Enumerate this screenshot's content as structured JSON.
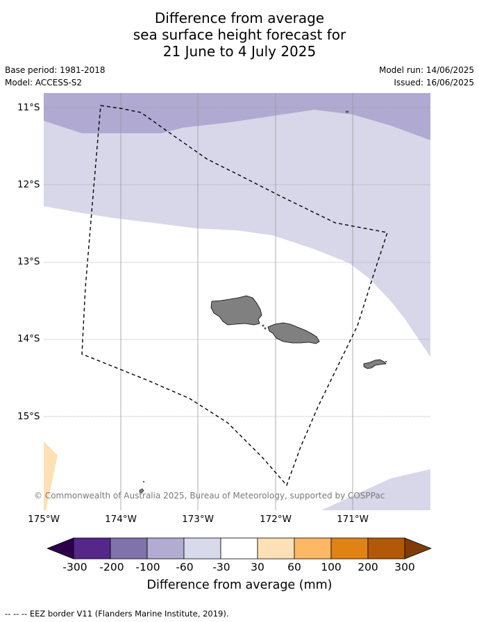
{
  "header": {
    "title_lines": [
      "Difference from average",
      "sea surface height forecast for",
      "21 June to 4 July 2025"
    ],
    "base_period": "Base period: 1981-2018",
    "model": "Model: ACCESS-S2",
    "model_run": "Model run: 14/06/2025",
    "issued": "Issued: 16/06/2025"
  },
  "map": {
    "lat_range": [
      -16.2,
      -10.8
    ],
    "lon_range": [
      -175.0,
      -170.0
    ],
    "lat_labels": [
      {
        "value": -11,
        "label": "11°S"
      },
      {
        "value": -12,
        "label": "12°S"
      },
      {
        "value": -13,
        "label": "13°S"
      },
      {
        "value": -14,
        "label": "14°S"
      },
      {
        "value": -15,
        "label": "15°S"
      }
    ],
    "lon_labels": [
      {
        "value": -175,
        "label": "175°W"
      },
      {
        "value": -174,
        "label": "174°W"
      },
      {
        "value": -173,
        "label": "173°W"
      },
      {
        "value": -172,
        "label": "172°W"
      },
      {
        "value": -171,
        "label": "171°W"
      }
    ],
    "colors": {
      "band_-200_-100": "#b0a9d1",
      "band_-100_-60": "#d7d7e9",
      "band_30_60": "#fde0b6",
      "land": "#808080",
      "gridline": "#9a9a9a"
    },
    "copyright": "© Commonwealth of Australia 2025, Bureau of Meteorology, supported by COSPPac"
  },
  "colorbar": {
    "label": "Difference from average (mm)",
    "ticks": [
      "-300",
      "-200",
      "-100",
      "-60",
      "-30",
      "30",
      "60",
      "100",
      "200",
      "300"
    ],
    "under_color": "#2d004b",
    "over_color": "#7f3b08",
    "colors": [
      "#542788",
      "#8073ac",
      "#b2abd2",
      "#d8daeb",
      "#ffffff",
      "#fee0b6",
      "#fdb863",
      "#e08214",
      "#b35806"
    ]
  },
  "footer": {
    "legend": "--  --  -- EEZ border V11 (Flanders Marine Institute, 2019)."
  }
}
